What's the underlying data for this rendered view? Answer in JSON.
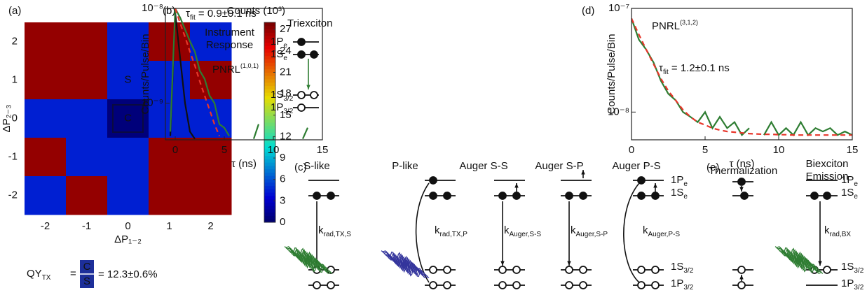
{
  "panel_labels": [
    "(a)",
    "(b)",
    "(c)",
    "(d)",
    "(e)"
  ],
  "chart_data": [
    {
      "type": "heatmap",
      "x_label": "ΔP₁₋₂",
      "y_label": "ΔP₂₋₃",
      "x": [
        -2,
        -1,
        0,
        1,
        2
      ],
      "y": [
        2,
        1,
        0,
        -1,
        -2
      ],
      "values": [
        [
          27,
          27,
          4.5,
          27,
          4.5
        ],
        [
          27,
          27,
          4.5,
          4.5,
          27
        ],
        [
          4.5,
          4.5,
          0.55,
          4.5,
          4.5
        ],
        [
          27,
          4.5,
          4.5,
          27,
          27
        ],
        [
          4.5,
          27,
          4.5,
          27,
          27
        ]
      ],
      "colormap": "jet",
      "zlim": [
        0,
        28
      ],
      "zticks": [
        0,
        3,
        6,
        9,
        12,
        15,
        18,
        21,
        24,
        27
      ],
      "colorbar_label": "Counts (10³)",
      "annotations": [
        "S",
        "C"
      ],
      "formula": {
        "lhs": {
          "main": "QY",
          "sub": "TX"
        },
        "eq": "=",
        "numerator": "C",
        "denominator": "S",
        "result": "= 12.3±0.6%"
      }
    },
    {
      "type": "line",
      "log_y": true,
      "x_label": "τ (ns)",
      "y_label": "Counts/Pulse/Bin",
      "x": [
        -1,
        -0.5,
        0,
        0.5,
        1,
        1.5,
        2,
        2.5,
        3,
        3.5,
        4,
        4.5,
        5,
        5.5,
        6,
        6.5,
        7,
        7.5,
        8,
        8.5,
        9,
        9.5,
        10,
        10.5,
        11,
        11.5,
        12,
        12.5,
        13,
        13.5,
        14,
        14.5,
        15
      ],
      "xlim": [
        -1,
        15
      ],
      "xticks": [
        0,
        5,
        10,
        15
      ],
      "ylim": [
        4.1e-10,
        1e-08
      ],
      "yticks": [
        {
          "value": 1e-08,
          "label": "10⁻⁸"
        },
        {
          "value": 1e-09,
          "label": "10⁻⁹"
        }
      ],
      "series": [
        {
          "name": "Instrument Response",
          "color": "#111111",
          "values": [
            null,
            4.5e-10,
            9e-09,
            3e-09,
            1e-09,
            5e-10,
            4.2e-10,
            null,
            null,
            null,
            null,
            null,
            null,
            null,
            null,
            null,
            null,
            null,
            null,
            null,
            null,
            null,
            null,
            null,
            null,
            null,
            null,
            null,
            null,
            null,
            null,
            null,
            null
          ]
        },
        {
          "name": "PNRL",
          "name_sup": "(1,0,1)",
          "color": "#2e7d32",
          "values": [
            null,
            5e-10,
            1e-08,
            8e-09,
            6e-09,
            4.5e-09,
            3.5e-09,
            2.2e-09,
            1.8e-09,
            1.2e-09,
            1e-09,
            6e-10,
            5.5e-10,
            4.5e-10,
            null,
            null,
            null,
            null,
            4.2e-10,
            6e-10,
            null,
            null,
            null,
            null,
            null,
            null,
            null,
            null,
            4.2e-10,
            5.5e-10,
            null,
            null,
            null
          ]
        },
        {
          "color": "#e8352a",
          "dash": true,
          "values": [
            null,
            null,
            1e-08,
            7e-09,
            5e-09,
            3.5e-09,
            2.5e-09,
            1.7e-09,
            1.2e-09,
            8.5e-10,
            6e-10,
            4.5e-10,
            null,
            null,
            null,
            null,
            null,
            null,
            null,
            null,
            null,
            null,
            null,
            null,
            null,
            null,
            null,
            null,
            null,
            null,
            null,
            null,
            null
          ]
        }
      ],
      "annotations": [
        {
          "main": "τ",
          "sub": "fit",
          "rest": " = 0.9±0.1 ns"
        }
      ],
      "inset": {
        "title": "Triexciton",
        "levels": [
          {
            "main": "1P",
            "sub": "e"
          },
          {
            "main": "1S",
            "sub": "e"
          },
          {
            "main": "1S",
            "sub": "3/2"
          },
          {
            "main": "1P",
            "sub": "3/2"
          }
        ]
      }
    },
    {
      "type": "line",
      "log_y": true,
      "x_label": "τ (ns)",
      "y_label": "Counts/Pulse/Bin",
      "x": [
        0,
        0.5,
        1,
        1.5,
        2,
        2.5,
        3,
        3.5,
        4,
        4.5,
        5,
        5.5,
        6,
        6.5,
        7,
        7.5,
        8,
        8.5,
        9,
        9.5,
        10,
        10.5,
        11,
        11.5,
        12,
        12.5,
        13,
        13.5,
        14,
        14.5,
        15
      ],
      "xlim": [
        0,
        15
      ],
      "xticks": [
        0,
        5,
        10,
        15
      ],
      "ylim": [
        5.4e-09,
        1e-07
      ],
      "yticks": [
        {
          "value": 1e-07,
          "label": "10⁻⁷"
        },
        {
          "value": 1e-08,
          "label": "10⁻⁸"
        }
      ],
      "series": [
        {
          "name": "PNRL",
          "name_sup": "(3,1,2)",
          "color": "#2e7d32",
          "values": [
            8e-08,
            5e-08,
            4e-08,
            3e-08,
            2e-08,
            1.5e-08,
            1.3e-08,
            1e-08,
            9e-09,
            8e-09,
            1e-08,
            7e-09,
            9e-09,
            7e-09,
            8e-09,
            6e-09,
            7e-09,
            null,
            6e-09,
            8e-09,
            6e-09,
            7e-09,
            6e-09,
            8e-09,
            6e-09,
            7e-09,
            6.5e-09,
            7e-09,
            6e-09,
            6.5e-09,
            6e-09
          ]
        },
        {
          "color": "#e8352a",
          "dash": true,
          "values": [
            8e-08,
            5.6e-08,
            4e-08,
            2.9e-08,
            2.1e-08,
            1.6e-08,
            1.3e-08,
            1.05e-08,
            9e-09,
            8e-09,
            7.5e-09,
            7e-09,
            6.7e-09,
            6.5e-09,
            6.4e-09,
            6.3e-09,
            6.2e-09,
            6.15e-09,
            6.1e-09,
            6.1e-09,
            6.05e-09,
            6.05e-09,
            6e-09,
            6e-09,
            6e-09,
            6e-09,
            6e-09,
            6e-09,
            6e-09,
            6e-09,
            6e-09
          ]
        }
      ],
      "annotations": [
        {
          "main": "τ",
          "sub": "fit",
          "rest": " = 1.2±0.1 ns"
        }
      ]
    }
  ],
  "diagrams": {
    "c": {
      "columns": [
        {
          "title": "S-like",
          "rate": {
            "main": "k",
            "sub": "rad,TX,S"
          }
        },
        {
          "title": "P-like",
          "rate": {
            "main": "k",
            "sub": "rad,TX,P"
          }
        },
        {
          "title": "Auger S-S",
          "rate": {
            "main": "k",
            "sub": "Auger,S-S"
          }
        },
        {
          "title": "Auger S-P",
          "rate": {
            "main": "k",
            "sub": "Auger,S-P"
          }
        },
        {
          "title": "Auger P-S",
          "rate": {
            "main": "k",
            "sub": "Auger,P-S"
          }
        }
      ],
      "levels": [
        {
          "main": "1P",
          "sub": "e"
        },
        {
          "main": "1S",
          "sub": "e"
        },
        {
          "main": "1S",
          "sub": "3/2"
        },
        {
          "main": "1P",
          "sub": "3/2"
        }
      ]
    },
    "e": {
      "columns": [
        {
          "title": "Thermalization"
        },
        {
          "title": "Biexciton Emission",
          "rate": {
            "main": "k",
            "sub": "rad,BX"
          }
        }
      ],
      "levels": [
        {
          "main": "1P",
          "sub": "e"
        },
        {
          "main": "1S",
          "sub": "e"
        },
        {
          "main": "1S",
          "sub": "3/2"
        },
        {
          "main": "1P",
          "sub": "3/2"
        }
      ]
    }
  }
}
